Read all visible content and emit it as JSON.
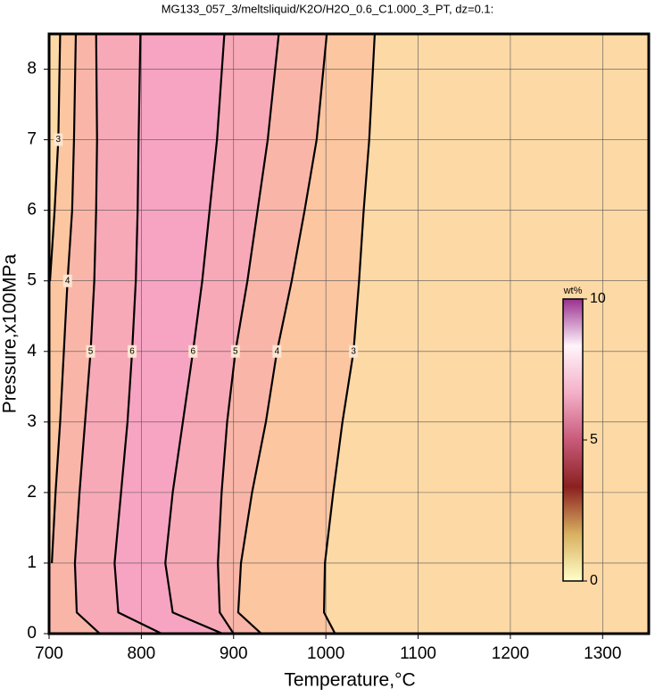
{
  "chart_data": {
    "type": "contour",
    "title": "MG133_057_3/meltsliquid/K2O/H2O_0.6_C1.000_3_PT, dz=0.1:",
    "x_label": "Temperature,°C",
    "y_label": "Pressure,x100MPa",
    "xlim": [
      700,
      1350
    ],
    "ylim": [
      0,
      8.5
    ],
    "xticks": [
      700,
      800,
      900,
      1000,
      1100,
      1200,
      1300
    ],
    "yticks": [
      0,
      1,
      2,
      3,
      4,
      5,
      6,
      7,
      8
    ],
    "grid": true,
    "background": "#fdd9a6",
    "y": [
      0,
      0.3,
      1,
      2,
      3,
      4,
      5,
      6,
      7,
      8.5
    ],
    "series": [
      {
        "name": "3",
        "color": "#000000",
        "fill": "#fcc6a1",
        "values": [
          null,
          null,
          null,
          null,
          null,
          null,
          701,
          706,
          710,
          712
        ]
      },
      {
        "name": "4",
        "color": "#000000",
        "fill": "#f9b6a8",
        "values": [
          null,
          null,
          703,
          707,
          712,
          716,
          720,
          725,
          727,
          729
        ]
      },
      {
        "name": "5",
        "color": "#000000",
        "fill": "#f7a9b8",
        "values": [
          755,
          730,
          728,
          733,
          739,
          745,
          749,
          751,
          752,
          751
        ]
      },
      {
        "name": "6",
        "color": "#000000",
        "fill": "#f6a4c1",
        "values": [
          822,
          775,
          771,
          778,
          785,
          790,
          794,
          796,
          797,
          799
        ]
      },
      {
        "name": "6",
        "color": "#000000",
        "fill": "#f6a4c1",
        "values": [
          888,
          834,
          826,
          834,
          845,
          856,
          866,
          874,
          882,
          890
        ]
      },
      {
        "name": "5",
        "color": "#000000",
        "fill": "#f7a9b8",
        "values": [
          900,
          885,
          883,
          887,
          893,
          902,
          915,
          926,
          937,
          949
        ]
      },
      {
        "name": "4",
        "color": "#000000",
        "fill": "#f9b6a8",
        "values": [
          930,
          905,
          908,
          920,
          935,
          947,
          963,
          977,
          990,
          1001
        ]
      },
      {
        "name": "3",
        "color": "#000000",
        "fill": "#fcc6a1",
        "values": [
          1010,
          998,
          999,
          1008,
          1018,
          1030,
          1036,
          1041,
          1047,
          1053
        ]
      }
    ],
    "colorbar": {
      "label": "wt%",
      "lim": [
        0,
        10
      ],
      "ticks": [
        0,
        5,
        10
      ],
      "colors": [
        "#ffffc8",
        "#d8b060",
        "#8a2020",
        "#c85a7a",
        "#f4b0c8",
        "#fff4fa",
        "#9a3090"
      ]
    }
  }
}
